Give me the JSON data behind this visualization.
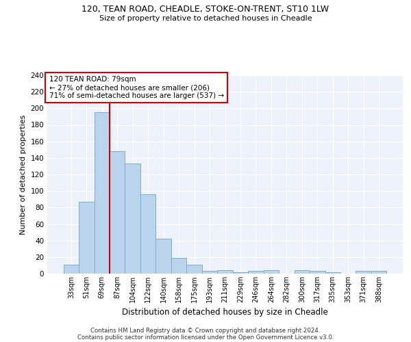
{
  "title1": "120, TEAN ROAD, CHEADLE, STOKE-ON-TRENT, ST10 1LW",
  "title2": "Size of property relative to detached houses in Cheadle",
  "xlabel": "Distribution of detached houses by size in Cheadle",
  "ylabel": "Number of detached properties",
  "bar_labels": [
    "33sqm",
    "51sqm",
    "69sqm",
    "87sqm",
    "104sqm",
    "122sqm",
    "140sqm",
    "158sqm",
    "175sqm",
    "193sqm",
    "211sqm",
    "229sqm",
    "246sqm",
    "264sqm",
    "282sqm",
    "300sqm",
    "317sqm",
    "335sqm",
    "353sqm",
    "371sqm",
    "388sqm"
  ],
  "bar_values": [
    11,
    87,
    195,
    148,
    133,
    96,
    42,
    19,
    11,
    3,
    4,
    2,
    3,
    4,
    0,
    4,
    3,
    2,
    0,
    3,
    3
  ],
  "bar_color": "#bad4ec",
  "bar_edge_color": "#7badd4",
  "property_label": "120 TEAN ROAD: 79sqm",
  "annotation_line1": "← 27% of detached houses are smaller (206)",
  "annotation_line2": "71% of semi-detached houses are larger (537) →",
  "vline_color": "#cc0000",
  "vline_x_index": 2.5,
  "annotation_box_color": "#cc0000",
  "ylim": [
    0,
    240
  ],
  "yticks": [
    0,
    20,
    40,
    60,
    80,
    100,
    120,
    140,
    160,
    180,
    200,
    220,
    240
  ],
  "background_color": "#eef2fa",
  "grid_color": "#ffffff",
  "footer1": "Contains HM Land Registry data © Crown copyright and database right 2024.",
  "footer2": "Contains public sector information licensed under the Open Government Licence v3.0."
}
